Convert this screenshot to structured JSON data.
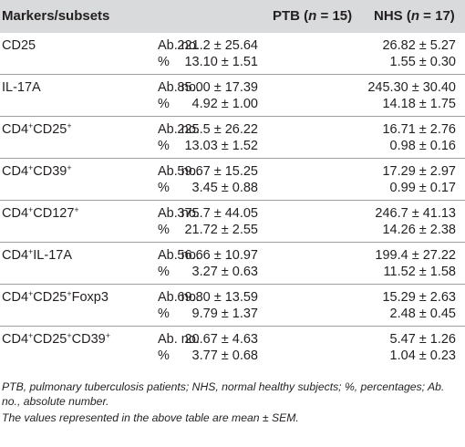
{
  "header": {
    "markers": "Markers/subsets",
    "ptb_label": "PTB (",
    "ptb_n": "n",
    "ptb_count": " = 15)",
    "nhs_label": "NHS (",
    "nhs_n": "n",
    "nhs_count": " = 17)"
  },
  "rows": [
    {
      "marker": "CD25",
      "sup1": "",
      "mid": "",
      "sup2": "",
      "tail": "",
      "abs_label": "Ab. no.",
      "pct_label": "%",
      "ptb_abs": "221.2 ± 25.64",
      "nhs_abs": "26.82 ± 5.27",
      "ptb_pct": "13.10 ± 1.51",
      "nhs_pct": "1.55 ± 0.30"
    },
    {
      "marker": "IL-17A",
      "sup1": "",
      "mid": "",
      "sup2": "",
      "tail": "",
      "abs_label": "Ab. no.",
      "pct_label": "%",
      "ptb_abs": "85.00 ± 17.39",
      "nhs_abs": "245.30 ± 30.40",
      "ptb_pct": "4.92 ± 1.00",
      "nhs_pct": "14.18 ± 1.75"
    },
    {
      "marker": "CD4",
      "sup1": "+",
      "mid": "CD25",
      "sup2": "+",
      "tail": "",
      "abs_label": "Ab. no.",
      "pct_label": "%",
      "ptb_abs": "225.5 ± 26.22",
      "nhs_abs": "16.71 ± 2.76",
      "ptb_pct": "13.03 ± 1.52",
      "nhs_pct": "0.98 ± 0.16"
    },
    {
      "marker": "CD4",
      "sup1": "+",
      "mid": "CD39",
      "sup2": "+",
      "tail": "",
      "abs_label": "Ab. no.",
      "pct_label": "%",
      "ptb_abs": "59.67 ± 15.25",
      "nhs_abs": "17.29 ± 2.97",
      "ptb_pct": "3.45 ± 0.88",
      "nhs_pct": "0.99 ± 0.17"
    },
    {
      "marker": "CD4",
      "sup1": "+",
      "mid": "CD127",
      "sup2": "+",
      "tail": "",
      "abs_label": "Ab. no.",
      "pct_label": "%",
      "ptb_abs": "375.7 ± 44.05",
      "nhs_abs": "246.7 ± 41.13",
      "ptb_pct": "21.72 ± 2.55",
      "nhs_pct": "14.26 ± 2.38"
    },
    {
      "marker": "CD4",
      "sup1": "+",
      "mid": "IL-17A",
      "sup2": "",
      "tail": "",
      "abs_label": "Ab. no.",
      "pct_label": "%",
      "ptb_abs": "56.66 ± 10.97",
      "nhs_abs": "199.4 ± 27.22",
      "ptb_pct": "3.27 ± 0.63",
      "nhs_pct": "11.52 ± 1.58"
    },
    {
      "marker": "CD4",
      "sup1": "+",
      "mid": "CD25",
      "sup2": "+",
      "tail": "Foxp3",
      "abs_label": "Ab. no.",
      "pct_label": "%",
      "ptb_abs": "69.80 ± 13.59",
      "nhs_abs": "15.29 ± 2.63",
      "ptb_pct": "9.79 ± 1.37",
      "nhs_pct": "2.48 ± 0.45"
    },
    {
      "marker": "CD4",
      "sup1": "+",
      "mid": "CD25",
      "sup2": "+",
      "tail": "CD39",
      "sup3": "+",
      "abs_label": "Ab. no.",
      "pct_label": "%",
      "ptb_abs": "20.67 ± 4.63",
      "nhs_abs": "5.47 ± 1.26",
      "ptb_pct": "3.77 ± 0.68",
      "nhs_pct": "1.04 ± 0.23"
    }
  ],
  "footnotes": {
    "abbreviations": "PTB, pulmonary tuberculosis patients; NHS, normal healthy subjects; %, percentages; Ab. no., absolute number.",
    "values_note": "The values represented in the above table are mean ± SEM."
  }
}
